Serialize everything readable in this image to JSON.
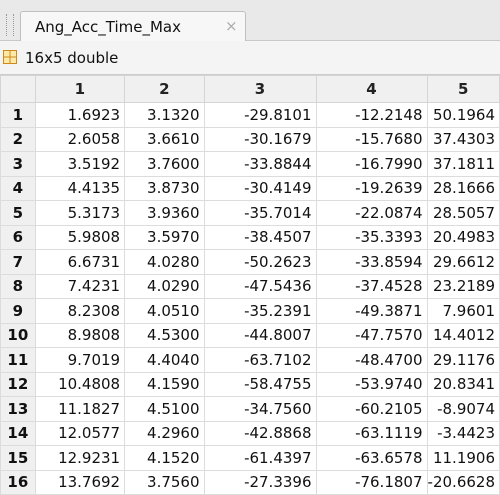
{
  "tab": {
    "title": "Ang_Acc_Time_Max",
    "close": "×"
  },
  "toolbar": {
    "label": "16x5 double"
  },
  "table": {
    "columns": [
      "1",
      "2",
      "3",
      "4",
      "5"
    ],
    "row_labels": [
      "1",
      "2",
      "3",
      "4",
      "5",
      "6",
      "7",
      "8",
      "9",
      "10",
      "11",
      "12",
      "13",
      "14",
      "15",
      "16"
    ],
    "rows": [
      [
        "1.6923",
        "3.1320",
        "-29.8101",
        "-12.2148",
        "50.1964"
      ],
      [
        "2.6058",
        "3.6610",
        "-30.1679",
        "-15.7680",
        "37.4303"
      ],
      [
        "3.5192",
        "3.7600",
        "-33.8844",
        "-16.7990",
        "37.1811"
      ],
      [
        "4.4135",
        "3.8730",
        "-30.4149",
        "-19.2639",
        "28.1666"
      ],
      [
        "5.3173",
        "3.9360",
        "-35.7014",
        "-22.0874",
        "28.5057"
      ],
      [
        "5.9808",
        "3.5970",
        "-38.4507",
        "-35.3393",
        "20.4983"
      ],
      [
        "6.6731",
        "4.0280",
        "-50.2623",
        "-33.8594",
        "29.6612"
      ],
      [
        "7.4231",
        "4.0290",
        "-47.5436",
        "-37.4528",
        "23.2189"
      ],
      [
        "8.2308",
        "4.0510",
        "-35.2391",
        "-49.3871",
        "7.9601"
      ],
      [
        "8.9808",
        "4.5300",
        "-44.8007",
        "-47.7570",
        "14.4012"
      ],
      [
        "9.7019",
        "4.4040",
        "-63.7102",
        "-48.4700",
        "29.1176"
      ],
      [
        "10.4808",
        "4.1590",
        "-58.4755",
        "-53.9740",
        "20.8341"
      ],
      [
        "11.1827",
        "4.5100",
        "-34.7560",
        "-60.2105",
        "-8.9074"
      ],
      [
        "12.0577",
        "4.2960",
        "-42.8868",
        "-63.1119",
        "-3.4423"
      ],
      [
        "12.9231",
        "4.1520",
        "-61.4397",
        "-63.6578",
        "11.1906"
      ],
      [
        "13.7692",
        "3.7560",
        "-27.3396",
        "-76.1807",
        "-20.6628"
      ]
    ]
  }
}
